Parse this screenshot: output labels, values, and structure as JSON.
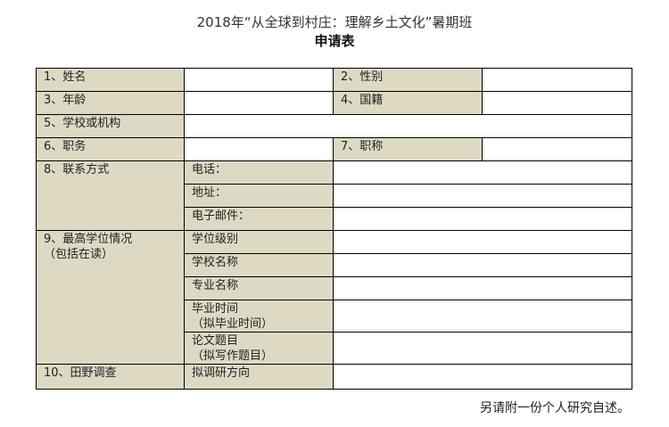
{
  "header": {
    "title": "2018年“从全球到村庄：理解乡土文化”暑期班",
    "subtitle": "申请表"
  },
  "form": {
    "name": "1、姓名",
    "gender": "2、性别",
    "age": "3、年龄",
    "nationality": "4、国籍",
    "school": "5、学校或机构",
    "position": "6、职务",
    "title": "7、职称",
    "contact": "8、联系方式",
    "phone": "电话：",
    "address": "地址：",
    "email": "电子邮件：",
    "degree": "9、最高学位情况",
    "degree_note": "（包括在读）",
    "degree_level": "学位级别",
    "school_name": "学校名称",
    "major": "专业名称",
    "grad_time": "毕业时间",
    "grad_time_note": "（拟毕业时间）",
    "thesis": "论文题目",
    "thesis_note": "（拟写作题目）",
    "fieldwork": "10、田野调查",
    "research_direction": "拟调研方向"
  },
  "footer": {
    "note": "另请附一份个人研究自述。"
  },
  "colors": {
    "label_fill": "#ddd9c3"
  }
}
